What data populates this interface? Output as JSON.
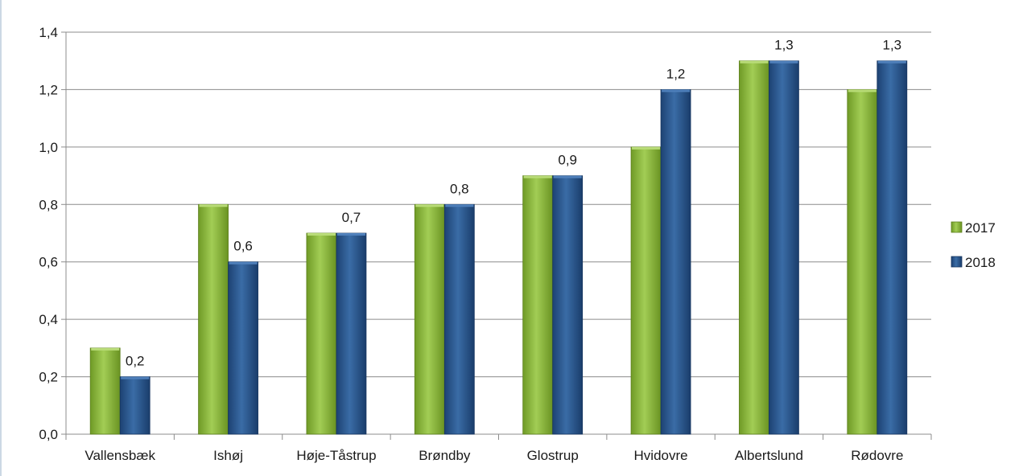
{
  "chart_data": {
    "type": "bar",
    "categories": [
      "Vallensbæk",
      "Ishøj",
      "Høje-Tåstrup",
      "Brøndby",
      "Glostrup",
      "Hvidovre",
      "Albertslund",
      "Rødovre"
    ],
    "series": [
      {
        "name": "2017",
        "values": [
          0.3,
          0.8,
          0.7,
          0.8,
          0.9,
          1.0,
          1.3,
          1.2
        ],
        "color": "#8cba3a"
      },
      {
        "name": "2018",
        "values": [
          0.2,
          0.6,
          0.7,
          0.8,
          0.9,
          1.2,
          1.3,
          1.3
        ],
        "color": "#2c5b94"
      }
    ],
    "data_labels": {
      "series": "2018",
      "values": [
        "0,2",
        "0,6",
        "0,7",
        "0,8",
        "0,9",
        "1,2",
        "1,3",
        "1,3"
      ]
    },
    "yticks": [
      "0,0",
      "0,2",
      "0,4",
      "0,6",
      "0,8",
      "1,0",
      "1,2",
      "1,4"
    ],
    "ylim": [
      0,
      1.4
    ],
    "grid": true,
    "legend_position": "right",
    "title": "",
    "xlabel": "",
    "ylabel": ""
  },
  "colors": {
    "grid": "#8c8c8c",
    "axis": "#8c8c8c",
    "frame": "#9ab2c8"
  }
}
